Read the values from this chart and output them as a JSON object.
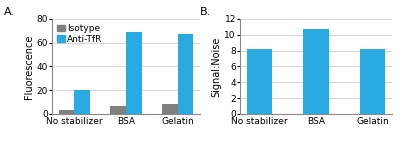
{
  "panel_A": {
    "categories": [
      "No stabilizer",
      "BSA",
      "Gelatin"
    ],
    "isotype_values": [
      3,
      7,
      8
    ],
    "anti_tfr_values": [
      20,
      69,
      67
    ],
    "ylabel": "Fluorescence",
    "ylim": [
      0,
      80
    ],
    "yticks": [
      0,
      20,
      40,
      60,
      80
    ],
    "label": "A."
  },
  "panel_B": {
    "categories": [
      "No stabilizer",
      "BSA",
      "Gelatin"
    ],
    "signal_noise_values": [
      8.2,
      10.7,
      8.2
    ],
    "ylabel": "Signal:Noise",
    "ylim": [
      0,
      12
    ],
    "yticks": [
      0,
      2,
      4,
      6,
      8,
      10,
      12
    ],
    "label": "B."
  },
  "isotype_color": "#808080",
  "anti_tfr_color": "#29ABE2",
  "bar_width": 0.3,
  "legend_labels": [
    "Isotype",
    "Anti-TfR"
  ],
  "fontsize": 7,
  "tick_fontsize": 6.5,
  "bg_color": "#f5f5f5"
}
